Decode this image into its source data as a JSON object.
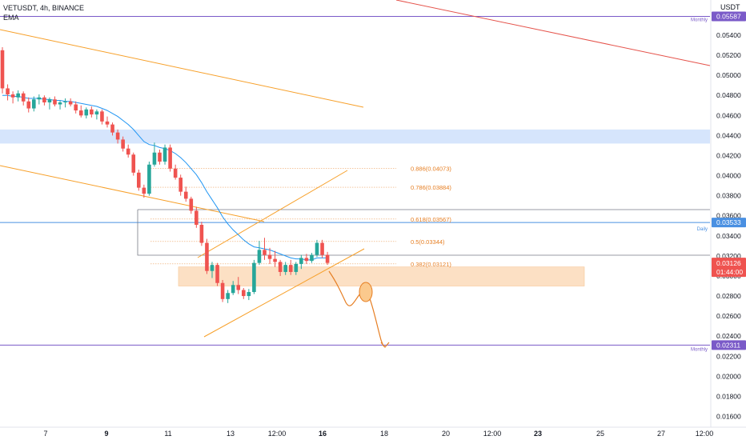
{
  "header": {
    "symbol": "VETUSDT, 4h, BINANCE",
    "indicator": "EMA"
  },
  "currency": "USDT",
  "colors": {
    "up": "#26a69a",
    "down": "#ef5350",
    "ema": "#2196f3",
    "orange": "#f7a02a",
    "fib": "#e67e22",
    "zone_blue": "#cfe0fb",
    "zone_orange": "#fcd9b6",
    "monthly": "#7a5ac8",
    "daily": "#4a90e2",
    "red_line": "#e5534b",
    "grey": "#787b86"
  },
  "chart_data": {
    "type": "candlestick",
    "timeframe": "4h",
    "y_axis": {
      "ticks": [
        0.054,
        0.052,
        0.05,
        0.048,
        0.046,
        0.044,
        0.042,
        0.04,
        0.038,
        0.036,
        0.034,
        0.032,
        0.03,
        0.028,
        0.026,
        0.024,
        0.022,
        0.02,
        0.018,
        0.016
      ],
      "tick_labels": [
        "0.05400",
        "0.05200",
        "0.05000",
        "0.04800",
        "0.04600",
        "0.04400",
        "0.04200",
        "0.04000",
        "0.03800",
        "0.03600",
        "0.03400",
        "0.03200",
        "0.03000",
        "0.02800",
        "0.02600",
        "0.02400",
        "0.02200",
        "0.02000",
        "0.01800",
        "0.01600"
      ]
    },
    "x_axis": {
      "labels": [
        {
          "text": "7",
          "bold": false
        },
        {
          "text": "9",
          "bold": true
        },
        {
          "text": "11",
          "bold": false
        },
        {
          "text": "13",
          "bold": false
        },
        {
          "text": "12:00",
          "bold": false
        },
        {
          "text": "16",
          "bold": true
        },
        {
          "text": "18",
          "bold": false
        },
        {
          "text": "20",
          "bold": false
        },
        {
          "text": "12:00",
          "bold": false
        },
        {
          "text": "23",
          "bold": true
        },
        {
          "text": "25",
          "bold": false
        },
        {
          "text": "27",
          "bold": false
        },
        {
          "text": "12:00",
          "bold": false
        }
      ]
    },
    "price_badges": [
      {
        "value": "0.05587",
        "tag": "Monthly",
        "color": "#7a5ac8"
      },
      {
        "value": "0.03533",
        "tag": "Daily",
        "color": "#4a90e2"
      },
      {
        "value": "0.03126",
        "sub": "01:44:00",
        "color": "#ef5350"
      },
      {
        "value": "0.02311",
        "tag": "Monthly",
        "color": "#7a5ac8"
      }
    ],
    "fib_levels": [
      {
        "label": "0.886(0.04073)",
        "price": 0.04073
      },
      {
        "label": "0.786(0.03884)",
        "price": 0.03884
      },
      {
        "label": "0.618(0.03567)",
        "price": 0.03567
      },
      {
        "label": "0.5(0.03344)",
        "price": 0.03344
      },
      {
        "label": "0.382(0.03121)",
        "price": 0.03121
      }
    ],
    "zones": [
      {
        "name": "resistance",
        "from": 0.0432,
        "to": 0.0446
      },
      {
        "name": "support",
        "from": 0.029,
        "to": 0.0309
      }
    ],
    "candles": [
      [
        0.0525,
        0.0528,
        0.0482,
        0.0487
      ],
      [
        0.0487,
        0.0491,
        0.0475,
        0.0481
      ],
      [
        0.0481,
        0.0484,
        0.0472,
        0.0478
      ],
      [
        0.0478,
        0.0485,
        0.0474,
        0.0482
      ],
      [
        0.0482,
        0.0484,
        0.047,
        0.0474
      ],
      [
        0.0474,
        0.0478,
        0.0463,
        0.0467
      ],
      [
        0.0467,
        0.0479,
        0.0464,
        0.0476
      ],
      [
        0.0476,
        0.0481,
        0.0471,
        0.0478
      ],
      [
        0.0478,
        0.048,
        0.047,
        0.0473
      ],
      [
        0.0473,
        0.0478,
        0.0466,
        0.0476
      ],
      [
        0.0476,
        0.0479,
        0.0469,
        0.0471
      ],
      [
        0.0471,
        0.0475,
        0.0466,
        0.0473
      ],
      [
        0.0473,
        0.0477,
        0.0468,
        0.0474
      ],
      [
        0.0474,
        0.0477,
        0.0469,
        0.0471
      ],
      [
        0.0471,
        0.0474,
        0.0462,
        0.0465
      ],
      [
        0.0465,
        0.047,
        0.0458,
        0.046
      ],
      [
        0.046,
        0.0468,
        0.0457,
        0.0466
      ],
      [
        0.0466,
        0.0469,
        0.0458,
        0.0461
      ],
      [
        0.0461,
        0.0466,
        0.0456,
        0.0464
      ],
      [
        0.0464,
        0.0466,
        0.0451,
        0.0454
      ],
      [
        0.0454,
        0.0459,
        0.0448,
        0.0451
      ],
      [
        0.0451,
        0.0453,
        0.044,
        0.0443
      ],
      [
        0.0443,
        0.0446,
        0.0432,
        0.0436
      ],
      [
        0.0436,
        0.0439,
        0.0424,
        0.0427
      ],
      [
        0.0427,
        0.0431,
        0.0418,
        0.0421
      ],
      [
        0.0421,
        0.0423,
        0.04,
        0.0403
      ],
      [
        0.0403,
        0.0406,
        0.0385,
        0.0388
      ],
      [
        0.0388,
        0.0391,
        0.0378,
        0.0382
      ],
      [
        0.0382,
        0.0414,
        0.038,
        0.0411
      ],
      [
        0.0411,
        0.0433,
        0.0409,
        0.0423
      ],
      [
        0.0423,
        0.0426,
        0.0411,
        0.0414
      ],
      [
        0.0414,
        0.0431,
        0.0411,
        0.0428
      ],
      [
        0.0428,
        0.0431,
        0.0404,
        0.0407
      ],
      [
        0.0407,
        0.0411,
        0.0396,
        0.0398
      ],
      [
        0.0398,
        0.0401,
        0.038,
        0.0384
      ],
      [
        0.0384,
        0.0389,
        0.0374,
        0.0377
      ],
      [
        0.0377,
        0.0379,
        0.0362,
        0.0365
      ],
      [
        0.0365,
        0.0369,
        0.0348,
        0.0351
      ],
      [
        0.0351,
        0.0354,
        0.033,
        0.0333
      ],
      [
        0.0333,
        0.0337,
        0.0302,
        0.0305
      ],
      [
        0.0305,
        0.0314,
        0.0298,
        0.0311
      ],
      [
        0.0311,
        0.0313,
        0.029,
        0.0293
      ],
      [
        0.0293,
        0.0296,
        0.0274,
        0.0277
      ],
      [
        0.0277,
        0.0286,
        0.0273,
        0.0283
      ],
      [
        0.0283,
        0.0295,
        0.0281,
        0.0291
      ],
      [
        0.0291,
        0.0299,
        0.0282,
        0.0286
      ],
      [
        0.0286,
        0.0288,
        0.0277,
        0.028
      ],
      [
        0.028,
        0.0287,
        0.0276,
        0.0284
      ],
      [
        0.0284,
        0.0316,
        0.0282,
        0.0313
      ],
      [
        0.0313,
        0.0335,
        0.0311,
        0.0326
      ],
      [
        0.0326,
        0.0338,
        0.0316,
        0.0321
      ],
      [
        0.0321,
        0.0328,
        0.0312,
        0.0317
      ],
      [
        0.0317,
        0.0325,
        0.0309,
        0.0314
      ],
      [
        0.0314,
        0.0316,
        0.03,
        0.0304
      ],
      [
        0.0304,
        0.0314,
        0.0301,
        0.0311
      ],
      [
        0.0311,
        0.0316,
        0.0301,
        0.0304
      ],
      [
        0.0304,
        0.0314,
        0.0301,
        0.0312
      ],
      [
        0.0312,
        0.0321,
        0.0307,
        0.0318
      ],
      [
        0.0318,
        0.0322,
        0.0312,
        0.0315
      ],
      [
        0.0315,
        0.0323,
        0.0313,
        0.0321
      ],
      [
        0.0321,
        0.0336,
        0.0319,
        0.0333
      ],
      [
        0.0333,
        0.0336,
        0.0318,
        0.0321
      ],
      [
        0.0321,
        0.0324,
        0.0311,
        0.0313
      ]
    ],
    "ema": [
      0.048,
      0.048,
      0.0479,
      0.0479,
      0.0478,
      0.0477,
      0.0477,
      0.0477,
      0.0476,
      0.0476,
      0.0475,
      0.0475,
      0.0474,
      0.0474,
      0.0473,
      0.0472,
      0.0471,
      0.047,
      0.0469,
      0.0467,
      0.0465,
      0.0462,
      0.0459,
      0.0455,
      0.0451,
      0.0446,
      0.044,
      0.0434,
      0.0431,
      0.043,
      0.0428,
      0.0427,
      0.0425,
      0.0422,
      0.0418,
      0.0413,
      0.0407,
      0.0401,
      0.0393,
      0.0384,
      0.0376,
      0.0368,
      0.0359,
      0.0352,
      0.0346,
      0.0341,
      0.0336,
      0.0332,
      0.0329,
      0.0328,
      0.0327,
      0.0326,
      0.0324,
      0.0322,
      0.032,
      0.0318,
      0.0317,
      0.0317,
      0.0316,
      0.0316,
      0.0318,
      0.0318,
      0.0318
    ]
  }
}
